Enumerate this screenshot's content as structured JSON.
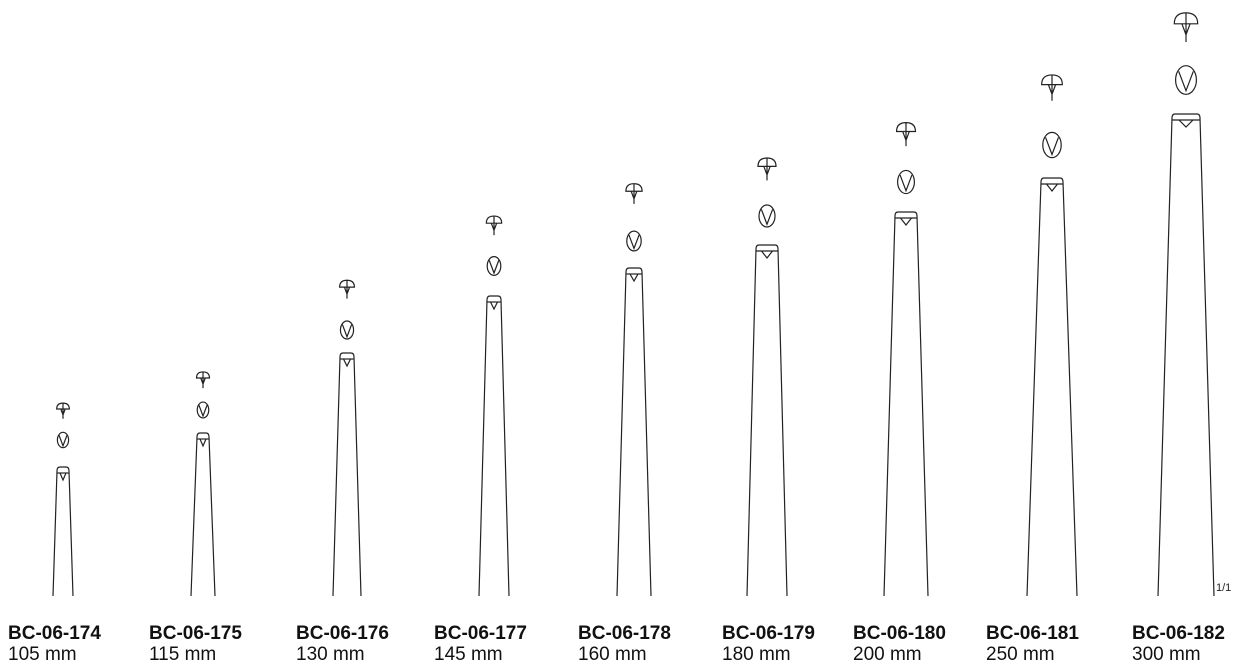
{
  "scale_note": "1/1",
  "items": [
    {
      "code": "BC-06-174",
      "length": "105 mm"
    },
    {
      "code": "BC-06-175",
      "length": "115 mm"
    },
    {
      "code": "BC-06-176",
      "length": "130 mm"
    },
    {
      "code": "BC-06-177",
      "length": "145 mm"
    },
    {
      "code": "BC-06-178",
      "length": "160 mm"
    },
    {
      "code": "BC-06-179",
      "length": "180 mm"
    },
    {
      "code": "BC-06-180",
      "length": "200 mm"
    },
    {
      "code": "BC-06-181",
      "length": "250 mm"
    },
    {
      "code": "BC-06-182",
      "length": "300 mm"
    }
  ]
}
